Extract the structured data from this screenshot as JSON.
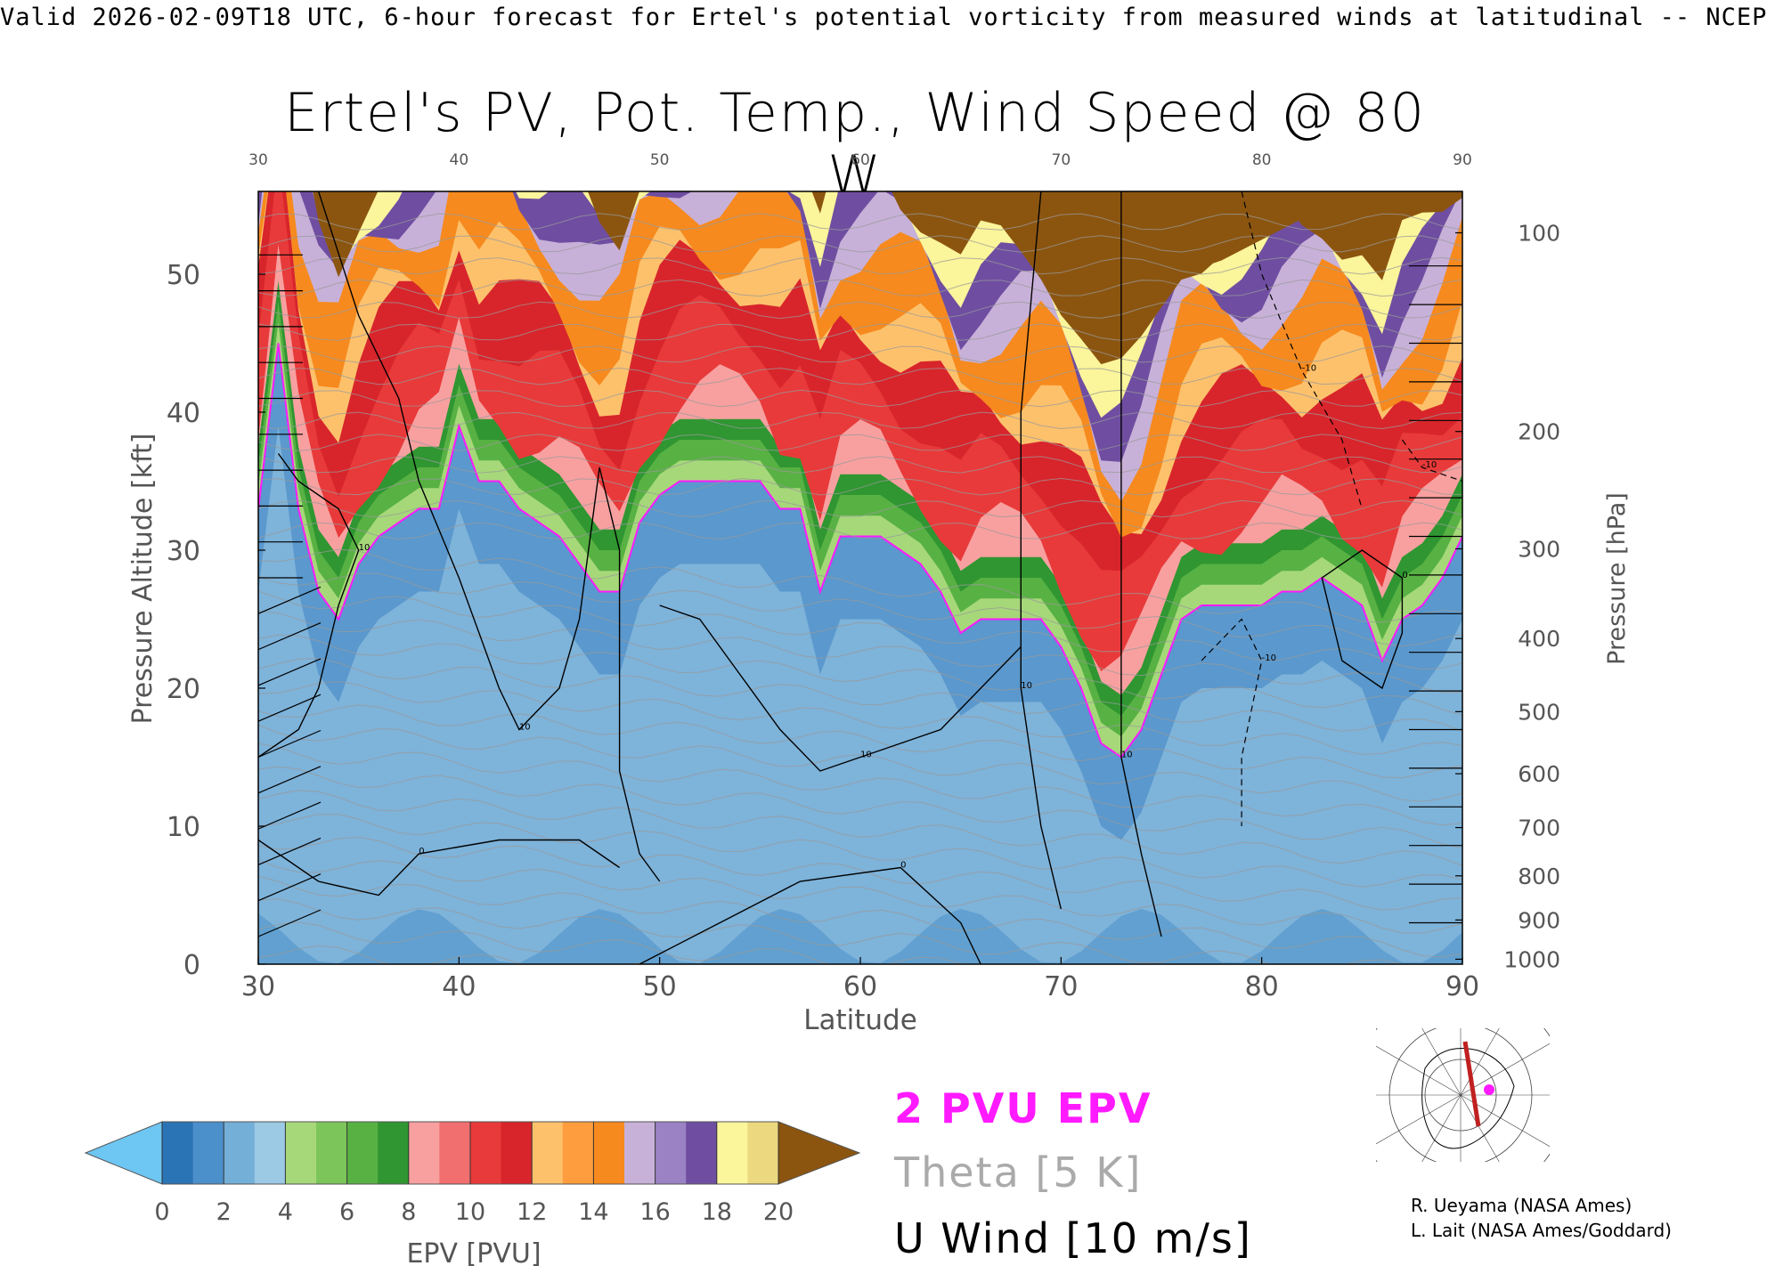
{
  "header": "Valid 2026-02-09T18 UTC, 6-hour forecast for Ertel's potential vorticity from measured winds at latitudinal -- NCEP",
  "chart_data": {
    "type": "heatmap",
    "title": "Ertel's PV, Pot. Temp., Wind Speed @ 80 W",
    "xlabel": "Latitude",
    "ylabel": "Pressure Altitude [kft]",
    "y2label": "Pressure [hPa]",
    "xlim": [
      30,
      90
    ],
    "ylim": [
      0,
      56
    ],
    "x_ticks": [
      "30",
      "40",
      "50",
      "60",
      "70",
      "80",
      "90"
    ],
    "y_ticks": [
      "0",
      "10",
      "20",
      "30",
      "40",
      "50"
    ],
    "top_ticks": [
      "30",
      "40",
      "50",
      "60",
      "70",
      "80",
      "90"
    ],
    "pressure_ticks": [
      {
        "label": "100",
        "kft": 53.0
      },
      {
        "label": "200",
        "kft": 38.6
      },
      {
        "label": "300",
        "kft": 30.1
      },
      {
        "label": "400",
        "kft": 23.6
      },
      {
        "label": "500",
        "kft": 18.3
      },
      {
        "label": "600",
        "kft": 13.8
      },
      {
        "label": "700",
        "kft": 9.9
      },
      {
        "label": "800",
        "kft": 6.4
      },
      {
        "label": "900",
        "kft": 3.2
      },
      {
        "label": "1000",
        "kft": 0.36
      }
    ],
    "epv_field": {
      "latitudes": [
        30,
        31,
        32,
        33,
        34,
        35,
        36,
        37,
        38,
        39,
        40,
        41,
        42,
        43,
        44,
        45,
        46,
        47,
        48,
        49,
        50,
        51,
        52,
        53,
        54,
        55,
        56,
        57,
        58,
        59,
        60,
        61,
        62,
        63,
        64,
        65,
        66,
        67,
        68,
        69,
        70,
        71,
        72,
        73,
        74,
        75,
        76,
        77,
        78,
        79,
        80,
        81,
        82,
        83,
        84,
        85,
        86,
        87,
        88,
        89,
        90
      ],
      "tropopause_2pvu_kft": [
        33,
        45,
        33,
        27,
        25,
        29,
        31,
        32,
        33,
        33,
        39,
        35,
        35,
        33,
        32,
        31,
        29,
        27,
        27,
        32,
        34,
        35,
        35,
        35,
        35,
        35,
        33,
        33,
        27,
        31,
        31,
        31,
        30,
        29,
        27,
        24,
        25,
        25,
        25,
        25,
        23,
        20,
        16,
        15,
        17,
        21,
        25,
        26,
        26,
        26,
        26,
        27,
        27,
        28,
        27,
        26,
        22,
        25,
        26,
        28,
        31
      ],
      "stratosphere_top_kft": [
        56,
        56,
        56,
        56,
        56,
        56,
        56,
        56,
        56,
        56,
        56,
        56,
        56,
        56,
        56,
        56,
        56,
        56,
        56,
        56,
        56,
        56,
        56,
        56,
        56,
        56,
        56,
        56,
        56,
        56,
        56,
        56,
        56,
        56,
        56,
        56,
        56,
        56,
        56,
        56,
        56,
        56,
        56,
        56,
        56,
        56,
        56,
        56,
        56,
        56,
        56,
        56,
        56,
        56,
        56,
        56,
        56,
        56,
        56,
        56,
        56
      ],
      "max_pv_region": {
        "lat_range": [
          66,
          84
        ],
        "kft_range": [
          50,
          56
        ],
        "value": 20
      }
    },
    "u_wind_contours": [
      {
        "label": "10",
        "points": [
          [
            33,
            56
          ],
          [
            35,
            47
          ],
          [
            37,
            41
          ],
          [
            38,
            35
          ],
          [
            40,
            28
          ],
          [
            41,
            24
          ],
          [
            42,
            20
          ],
          [
            43,
            17
          ],
          [
            45,
            20
          ],
          [
            46,
            25
          ],
          [
            47,
            36
          ],
          [
            48,
            30
          ],
          [
            48,
            14
          ],
          [
            49,
            8
          ],
          [
            50,
            6
          ]
        ]
      },
      {
        "label": "10",
        "points": [
          [
            50,
            26
          ],
          [
            52,
            25
          ],
          [
            54,
            21
          ],
          [
            56,
            17
          ],
          [
            58,
            14
          ],
          [
            60,
            15
          ],
          [
            62,
            16
          ],
          [
            64,
            17
          ],
          [
            66,
            20
          ],
          [
            68,
            23
          ]
        ]
      },
      {
        "label": "10",
        "points": [
          [
            69,
            56
          ],
          [
            68,
            40
          ],
          [
            68,
            20
          ],
          [
            69,
            10
          ],
          [
            70,
            4
          ]
        ]
      },
      {
        "label": "10",
        "points": [
          [
            73,
            56
          ],
          [
            73,
            45
          ],
          [
            73,
            30
          ],
          [
            73,
            15
          ],
          [
            74,
            8
          ],
          [
            75,
            2
          ]
        ]
      },
      {
        "label": "10",
        "points": [
          [
            30,
            15
          ],
          [
            32,
            17
          ],
          [
            33,
            20
          ],
          [
            34,
            26
          ],
          [
            35,
            30
          ],
          [
            34,
            33
          ],
          [
            32,
            35
          ],
          [
            31,
            37
          ]
        ]
      },
      {
        "label": "0",
        "points": [
          [
            30,
            9
          ],
          [
            33,
            6
          ],
          [
            36,
            5
          ],
          [
            38,
            8
          ],
          [
            42,
            9
          ],
          [
            46,
            9
          ],
          [
            48,
            7
          ]
        ]
      },
      {
        "label": "0",
        "points": [
          [
            49,
            0
          ],
          [
            53,
            3
          ],
          [
            57,
            6
          ],
          [
            62,
            7
          ],
          [
            65,
            3
          ],
          [
            66,
            0
          ]
        ]
      },
      {
        "label": "0",
        "points": [
          [
            84,
            22
          ],
          [
            86,
            20
          ],
          [
            87,
            24
          ],
          [
            87,
            28
          ],
          [
            85,
            30
          ],
          [
            83,
            28
          ],
          [
            84,
            22
          ]
        ]
      }
    ],
    "u_wind_dashed": [
      {
        "label": "-10",
        "points": [
          [
            77,
            22
          ],
          [
            79,
            25
          ],
          [
            80,
            22
          ],
          [
            79,
            15
          ],
          [
            79,
            10
          ]
        ]
      },
      {
        "label": "-10",
        "points": [
          [
            79,
            56
          ],
          [
            80,
            50
          ],
          [
            82,
            43
          ],
          [
            84,
            38
          ],
          [
            85,
            33
          ]
        ]
      },
      {
        "label": "-10",
        "points": [
          [
            87,
            38
          ],
          [
            88,
            36
          ],
          [
            90,
            35
          ]
        ]
      }
    ],
    "colorbar": {
      "label": "EPV [PVU]",
      "tick_labels": [
        "0",
        "2",
        "4",
        "6",
        "8",
        "10",
        "12",
        "14",
        "16",
        "18",
        "20"
      ],
      "colors": [
        "#6ec6f3",
        "#2a74b5",
        "#4b8fcb",
        "#74afd8",
        "#9cc9e4",
        "#a6d87a",
        "#7cc55a",
        "#58b143",
        "#2f9631",
        "#f8a0a0",
        "#f26f6f",
        "#e83a3a",
        "#d8252b",
        "#fdc16c",
        "#fd9d3d",
        "#f68a1e",
        "#c8b1d8",
        "#9a82c4",
        "#6f4ea1",
        "#fbf59b",
        "#ecd97f",
        "#8b5510"
      ]
    },
    "legend": [
      "2 PVU EPV",
      "Theta [5 K]",
      "U Wind [10 m/s]"
    ],
    "credits": [
      "R. Ueyama (NASA Ames)",
      "L. Lait (NASA Ames/Goddard)"
    ]
  }
}
